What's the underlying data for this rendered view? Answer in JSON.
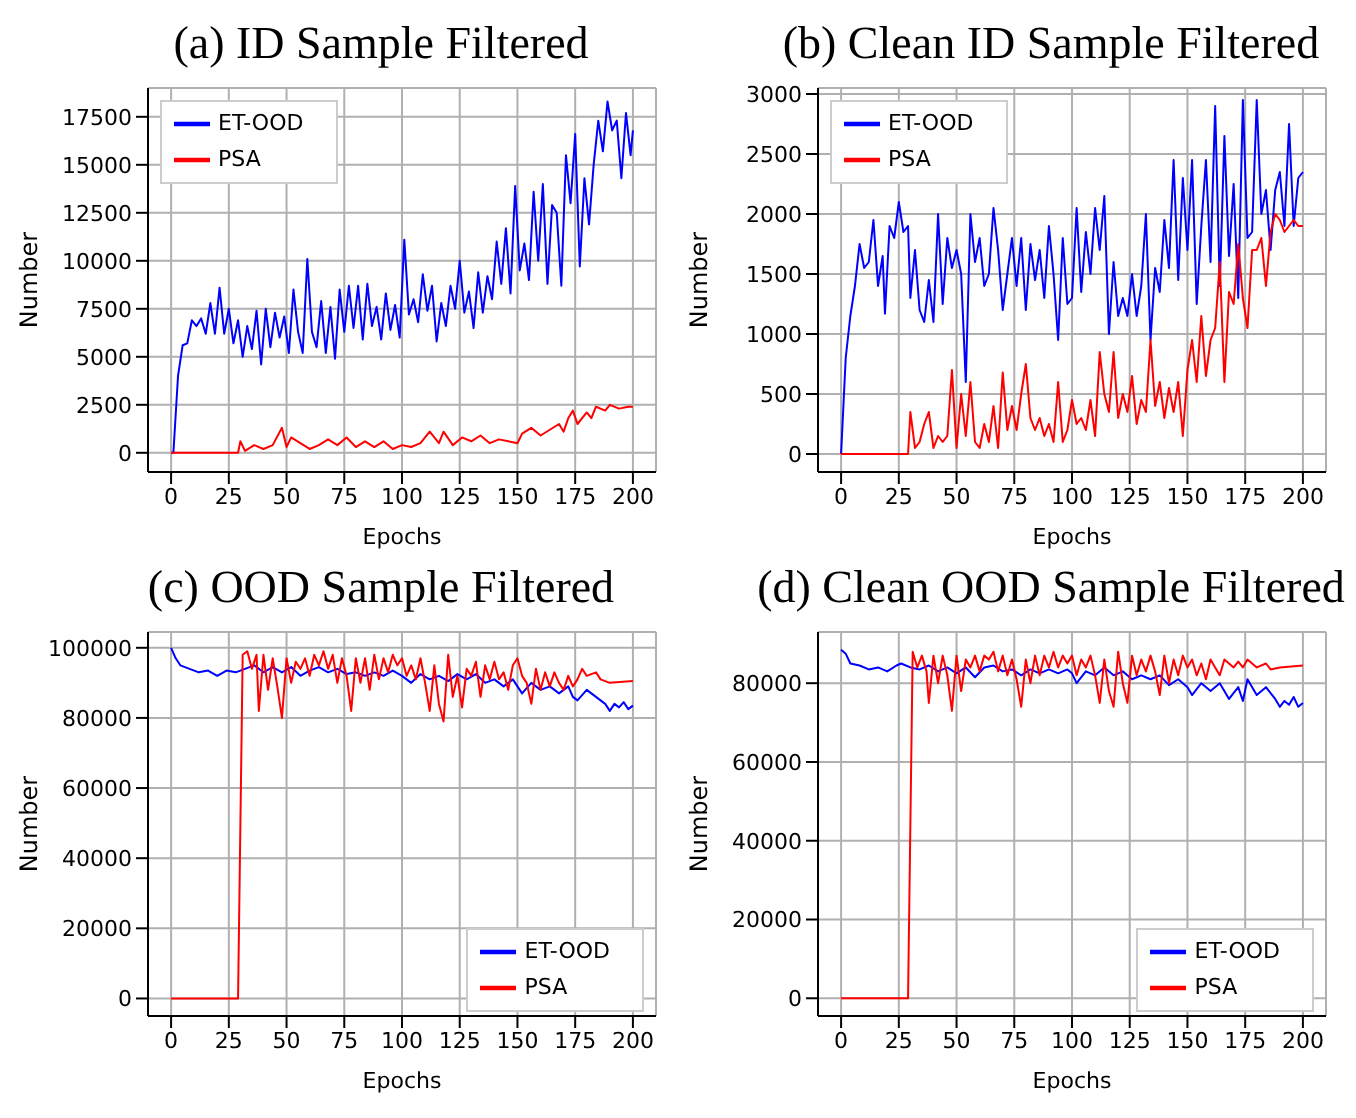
{
  "chart_data": [
    {
      "type": "line",
      "title": "(a) ID Sample Filtered",
      "xlabel": "Epochs",
      "ylabel": "Number",
      "xlim": [
        -10,
        210
      ],
      "ylim": [
        -1000,
        19000
      ],
      "xticks": [
        0,
        25,
        50,
        75,
        100,
        125,
        150,
        175,
        200
      ],
      "yticks": [
        0,
        2500,
        5000,
        7500,
        10000,
        12500,
        15000,
        17500
      ],
      "grid": true,
      "legend": "top left",
      "series": [
        {
          "name": "ET-OOD",
          "color": "#0000ff",
          "x": [
            0,
            1,
            3,
            5,
            7,
            9,
            11,
            13,
            15,
            17,
            19,
            21,
            23,
            25,
            27,
            29,
            31,
            33,
            35,
            37,
            39,
            41,
            43,
            45,
            47,
            49,
            51,
            53,
            55,
            57,
            59,
            61,
            63,
            65,
            67,
            69,
            71,
            73,
            75,
            77,
            79,
            81,
            83,
            85,
            87,
            89,
            91,
            93,
            95,
            97,
            99,
            101,
            103,
            105,
            107,
            109,
            111,
            113,
            115,
            117,
            119,
            121,
            123,
            125,
            127,
            129,
            131,
            133,
            135,
            137,
            139,
            141,
            143,
            145,
            147,
            149,
            151,
            153,
            155,
            157,
            159,
            161,
            163,
            165,
            167,
            169,
            171,
            173,
            175,
            177,
            179,
            181,
            183,
            185,
            187,
            189,
            191,
            193,
            195,
            197,
            199,
            200
          ],
          "values": [
            0,
            0,
            4000,
            5600,
            5700,
            6900,
            6600,
            7000,
            6200,
            7800,
            6200,
            8600,
            6200,
            7500,
            5700,
            6900,
            5000,
            6600,
            5400,
            7400,
            4600,
            7500,
            5500,
            7300,
            6000,
            7100,
            5200,
            8500,
            6300,
            5200,
            10100,
            6300,
            5500,
            7900,
            5200,
            7600,
            4900,
            8500,
            6300,
            8700,
            6500,
            8700,
            5900,
            8800,
            6600,
            7600,
            5900,
            8300,
            6400,
            7700,
            6000,
            11100,
            7200,
            8000,
            6800,
            9300,
            7400,
            8700,
            5800,
            7800,
            6600,
            8700,
            7500,
            10000,
            7300,
            8400,
            6500,
            9400,
            7300,
            9200,
            8000,
            11000,
            8800,
            11700,
            8300,
            13900,
            9500,
            10900,
            9000,
            13600,
            10000,
            14000,
            8800,
            12900,
            12500,
            8700,
            15500,
            13000,
            16600,
            9700,
            14300,
            11900,
            15000,
            17300,
            15700,
            18300,
            16800,
            17300,
            14300,
            17700,
            15500,
            16800
          ]
        },
        {
          "name": "PSA",
          "color": "#ff0000",
          "x": [
            0,
            29,
            30,
            32,
            36,
            40,
            44,
            48,
            50,
            52,
            56,
            60,
            64,
            68,
            72,
            76,
            80,
            84,
            88,
            92,
            96,
            100,
            104,
            108,
            112,
            116,
            118,
            122,
            126,
            130,
            134,
            138,
            142,
            146,
            150,
            152,
            156,
            160,
            164,
            168,
            170,
            172,
            174,
            176,
            180,
            182,
            184,
            188,
            190,
            194,
            198,
            200
          ],
          "values": [
            0,
            0,
            600,
            100,
            400,
            200,
            400,
            1300,
            300,
            800,
            500,
            200,
            400,
            700,
            400,
            800,
            300,
            600,
            300,
            600,
            200,
            400,
            300,
            500,
            1100,
            500,
            1100,
            400,
            800,
            600,
            900,
            500,
            700,
            600,
            500,
            1000,
            1300,
            900,
            1200,
            1500,
            1100,
            1800,
            2200,
            1500,
            2100,
            1800,
            2400,
            2200,
            2500,
            2300,
            2400,
            2400
          ]
        }
      ]
    },
    {
      "type": "line",
      "title": "(b) Clean ID Sample Filtered",
      "xlabel": "Epochs",
      "ylabel": "Number",
      "xlim": [
        -10,
        210
      ],
      "ylim": [
        -150,
        3050
      ],
      "xticks": [
        0,
        25,
        50,
        75,
        100,
        125,
        150,
        175,
        200
      ],
      "yticks": [
        0,
        500,
        1000,
        1500,
        2000,
        2500,
        3000
      ],
      "grid": true,
      "legend": "top left",
      "series": [
        {
          "name": "ET-OOD",
          "color": "#0000ff",
          "x": [
            0,
            2,
            4,
            6,
            8,
            10,
            12,
            14,
            16,
            18,
            19,
            21,
            23,
            25,
            27,
            29,
            30,
            32,
            34,
            36,
            38,
            40,
            42,
            44,
            46,
            48,
            50,
            52,
            54,
            56,
            58,
            60,
            62,
            64,
            66,
            68,
            70,
            72,
            74,
            76,
            78,
            80,
            82,
            84,
            86,
            88,
            90,
            92,
            94,
            96,
            98,
            100,
            102,
            104,
            106,
            108,
            110,
            112,
            114,
            116,
            118,
            120,
            122,
            124,
            126,
            128,
            130,
            132,
            134,
            136,
            138,
            140,
            142,
            144,
            146,
            148,
            150,
            152,
            154,
            156,
            158,
            160,
            162,
            164,
            166,
            168,
            170,
            172,
            174,
            176,
            178,
            180,
            182,
            184,
            186,
            188,
            190,
            192,
            194,
            196,
            198,
            200
          ],
          "values": [
            0,
            800,
            1150,
            1400,
            1750,
            1550,
            1600,
            1950,
            1400,
            1650,
            1170,
            1900,
            1800,
            2100,
            1850,
            1900,
            1300,
            1700,
            1200,
            1100,
            1450,
            1100,
            2000,
            1250,
            1800,
            1550,
            1700,
            1500,
            600,
            2000,
            1600,
            1800,
            1400,
            1500,
            2050,
            1700,
            1200,
            1500,
            1800,
            1400,
            1800,
            1200,
            1750,
            1450,
            1700,
            1300,
            1900,
            1500,
            950,
            1800,
            1250,
            1300,
            2050,
            1350,
            1850,
            1500,
            2050,
            1700,
            2150,
            1000,
            1600,
            1150,
            1300,
            1150,
            1500,
            1150,
            1400,
            2000,
            950,
            1550,
            1350,
            1950,
            1550,
            2450,
            1450,
            2300,
            1700,
            2450,
            1250,
            1900,
            2450,
            1600,
            2900,
            1400,
            2650,
            1650,
            2250,
            1300,
            2950,
            1800,
            1850,
            2950,
            2000,
            2200,
            1700,
            2200,
            2350,
            1900,
            2750,
            1900,
            2300,
            2350
          ]
        },
        {
          "name": "PSA",
          "color": "#ff0000",
          "x": [
            0,
            29,
            30,
            32,
            34,
            36,
            38,
            40,
            42,
            44,
            46,
            48,
            50,
            52,
            54,
            56,
            58,
            60,
            62,
            64,
            66,
            68,
            70,
            72,
            74,
            76,
            78,
            80,
            82,
            84,
            86,
            88,
            90,
            92,
            94,
            96,
            98,
            100,
            102,
            104,
            106,
            108,
            110,
            112,
            114,
            116,
            118,
            120,
            122,
            124,
            126,
            128,
            130,
            132,
            134,
            136,
            138,
            140,
            142,
            144,
            146,
            148,
            150,
            152,
            154,
            156,
            158,
            160,
            162,
            164,
            166,
            168,
            170,
            172,
            174,
            176,
            178,
            180,
            182,
            184,
            186,
            188,
            190,
            192,
            194,
            196,
            198,
            200
          ],
          "values": [
            0,
            0,
            350,
            50,
            100,
            250,
            350,
            50,
            150,
            100,
            150,
            700,
            50,
            500,
            150,
            600,
            100,
            50,
            250,
            100,
            400,
            50,
            680,
            200,
            400,
            200,
            500,
            750,
            300,
            200,
            300,
            150,
            250,
            100,
            600,
            100,
            200,
            450,
            250,
            300,
            200,
            450,
            150,
            850,
            500,
            350,
            850,
            300,
            500,
            350,
            650,
            250,
            450,
            350,
            950,
            400,
            600,
            300,
            550,
            350,
            600,
            150,
            700,
            950,
            600,
            1150,
            650,
            950,
            1050,
            1600,
            600,
            1350,
            1250,
            1750,
            1300,
            1050,
            1700,
            1700,
            1800,
            1400,
            1850,
            2000,
            1950,
            1850,
            1900,
            1950,
            1900,
            1900
          ]
        }
      ]
    },
    {
      "type": "line",
      "title": "(c) OOD Sample Filtered",
      "xlabel": "Epochs",
      "ylabel": "Number",
      "xlim": [
        -10,
        210
      ],
      "ylim": [
        -5000,
        104500
      ],
      "xticks": [
        0,
        25,
        50,
        75,
        100,
        125,
        150,
        175,
        200
      ],
      "yticks": [
        0,
        20000,
        40000,
        60000,
        80000,
        100000
      ],
      "grid": true,
      "legend": "bottom right",
      "series": [
        {
          "name": "ET-OOD",
          "color": "#0000ff",
          "x": [
            0,
            2,
            4,
            8,
            12,
            16,
            20,
            24,
            28,
            32,
            36,
            40,
            44,
            48,
            52,
            56,
            60,
            64,
            68,
            72,
            76,
            80,
            84,
            88,
            92,
            96,
            100,
            104,
            108,
            112,
            116,
            120,
            124,
            128,
            132,
            136,
            140,
            144,
            148,
            152,
            156,
            160,
            164,
            168,
            172,
            174,
            176,
            180,
            184,
            188,
            190,
            192,
            194,
            196,
            198,
            200
          ],
          "values": [
            100000,
            97000,
            95000,
            94000,
            93000,
            93500,
            92000,
            93500,
            93000,
            94000,
            95000,
            93000,
            94500,
            93000,
            94500,
            92000,
            93500,
            94500,
            93000,
            94000,
            92500,
            93000,
            92000,
            93000,
            92000,
            93500,
            92000,
            90000,
            92500,
            91000,
            92000,
            90500,
            92500,
            91000,
            92500,
            90000,
            91000,
            89000,
            91000,
            87000,
            90000,
            88000,
            89000,
            87000,
            89000,
            86000,
            85000,
            88000,
            86000,
            84000,
            82000,
            84000,
            83000,
            84500,
            82500,
            83500
          ]
        },
        {
          "name": "PSA",
          "color": "#ff0000",
          "x": [
            0,
            29,
            31,
            33,
            35,
            37,
            38,
            40,
            42,
            44,
            46,
            48,
            50,
            52,
            54,
            56,
            58,
            60,
            62,
            64,
            66,
            68,
            70,
            72,
            74,
            76,
            78,
            80,
            82,
            84,
            86,
            88,
            90,
            92,
            94,
            96,
            98,
            100,
            102,
            104,
            106,
            108,
            110,
            112,
            114,
            116,
            118,
            120,
            122,
            124,
            126,
            128,
            130,
            132,
            134,
            136,
            138,
            140,
            142,
            144,
            146,
            148,
            150,
            152,
            154,
            156,
            158,
            160,
            162,
            164,
            166,
            168,
            170,
            172,
            174,
            176,
            178,
            180,
            184,
            186,
            190,
            200
          ],
          "values": [
            0,
            0,
            98000,
            99000,
            94000,
            98000,
            82000,
            98000,
            88000,
            97000,
            89000,
            80000,
            97000,
            90000,
            96000,
            94000,
            97000,
            92000,
            98000,
            95000,
            99000,
            94000,
            98000,
            90000,
            97000,
            92000,
            82000,
            97000,
            90000,
            97000,
            88000,
            98000,
            91000,
            97000,
            93000,
            98000,
            95000,
            97000,
            92000,
            95000,
            91000,
            97000,
            90000,
            82000,
            95000,
            84000,
            79000,
            98000,
            86000,
            92000,
            83000,
            94000,
            92000,
            96000,
            86000,
            95000,
            91000,
            96000,
            91000,
            93000,
            88000,
            95000,
            97000,
            92000,
            90000,
            84000,
            94000,
            88000,
            93000,
            89000,
            93000,
            90000,
            88000,
            92000,
            89000,
            91000,
            94000,
            92000,
            93000,
            91000,
            90000,
            90500
          ]
        }
      ]
    },
    {
      "type": "line",
      "title": "(d) Clean OOD Sample Filtered",
      "xlabel": "Epochs",
      "ylabel": "Number",
      "xlim": [
        -10,
        210
      ],
      "ylim": [
        -4500,
        93000
      ],
      "xticks": [
        0,
        25,
        50,
        75,
        100,
        125,
        150,
        175,
        200
      ],
      "yticks": [
        0,
        20000,
        40000,
        60000,
        80000
      ],
      "grid": true,
      "legend": "bottom right",
      "series": [
        {
          "name": "ET-OOD",
          "color": "#0000ff",
          "x": [
            0,
            2,
            4,
            8,
            12,
            16,
            20,
            24,
            26,
            30,
            34,
            38,
            42,
            46,
            50,
            54,
            58,
            62,
            66,
            70,
            74,
            78,
            82,
            86,
            90,
            94,
            98,
            100,
            102,
            106,
            110,
            114,
            118,
            122,
            126,
            130,
            134,
            138,
            142,
            146,
            150,
            152,
            156,
            160,
            164,
            168,
            172,
            174,
            176,
            180,
            184,
            188,
            190,
            192,
            194,
            196,
            198,
            200
          ],
          "values": [
            88500,
            87500,
            85000,
            84500,
            83500,
            84000,
            83000,
            84500,
            85000,
            84000,
            83500,
            84500,
            83000,
            84000,
            82500,
            84000,
            81500,
            84000,
            84500,
            83000,
            83500,
            82000,
            83500,
            82500,
            83500,
            82500,
            83500,
            82500,
            80000,
            83000,
            82000,
            84000,
            82000,
            83000,
            81000,
            82000,
            81000,
            82000,
            79500,
            81000,
            79000,
            77000,
            80000,
            78000,
            80000,
            76000,
            79000,
            75500,
            81000,
            77000,
            79000,
            76000,
            74000,
            75500,
            74500,
            76500,
            74000,
            75000
          ]
        },
        {
          "name": "PSA",
          "color": "#ff0000",
          "x": [
            0,
            29,
            31,
            33,
            35,
            37,
            38,
            40,
            42,
            44,
            46,
            48,
            50,
            52,
            54,
            56,
            58,
            60,
            62,
            64,
            66,
            68,
            70,
            72,
            74,
            76,
            78,
            80,
            82,
            84,
            86,
            88,
            90,
            92,
            94,
            96,
            98,
            100,
            102,
            104,
            106,
            108,
            110,
            112,
            114,
            116,
            118,
            120,
            122,
            124,
            126,
            128,
            130,
            132,
            134,
            136,
            138,
            140,
            142,
            144,
            146,
            148,
            150,
            152,
            154,
            156,
            158,
            160,
            162,
            164,
            166,
            170,
            172,
            174,
            176,
            180,
            184,
            186,
            190,
            200
          ],
          "values": [
            0,
            0,
            88000,
            84000,
            87000,
            83000,
            75000,
            87000,
            80000,
            87000,
            82000,
            73000,
            87000,
            78000,
            86000,
            84000,
            87000,
            83000,
            87000,
            86000,
            88000,
            83000,
            87000,
            82000,
            86000,
            81000,
            74000,
            86000,
            80000,
            87000,
            82000,
            87000,
            84000,
            88000,
            84000,
            87000,
            85000,
            87000,
            82000,
            86000,
            84000,
            87000,
            82000,
            75000,
            86000,
            78000,
            74000,
            88000,
            80000,
            75000,
            87000,
            82000,
            86000,
            83000,
            87000,
            83000,
            77000,
            87000,
            80000,
            86000,
            82000,
            87000,
            84000,
            86000,
            82000,
            85000,
            81000,
            86000,
            84000,
            82000,
            86000,
            84000,
            85500,
            84000,
            86000,
            84000,
            85000,
            83500,
            84000,
            84500
          ]
        }
      ]
    }
  ]
}
